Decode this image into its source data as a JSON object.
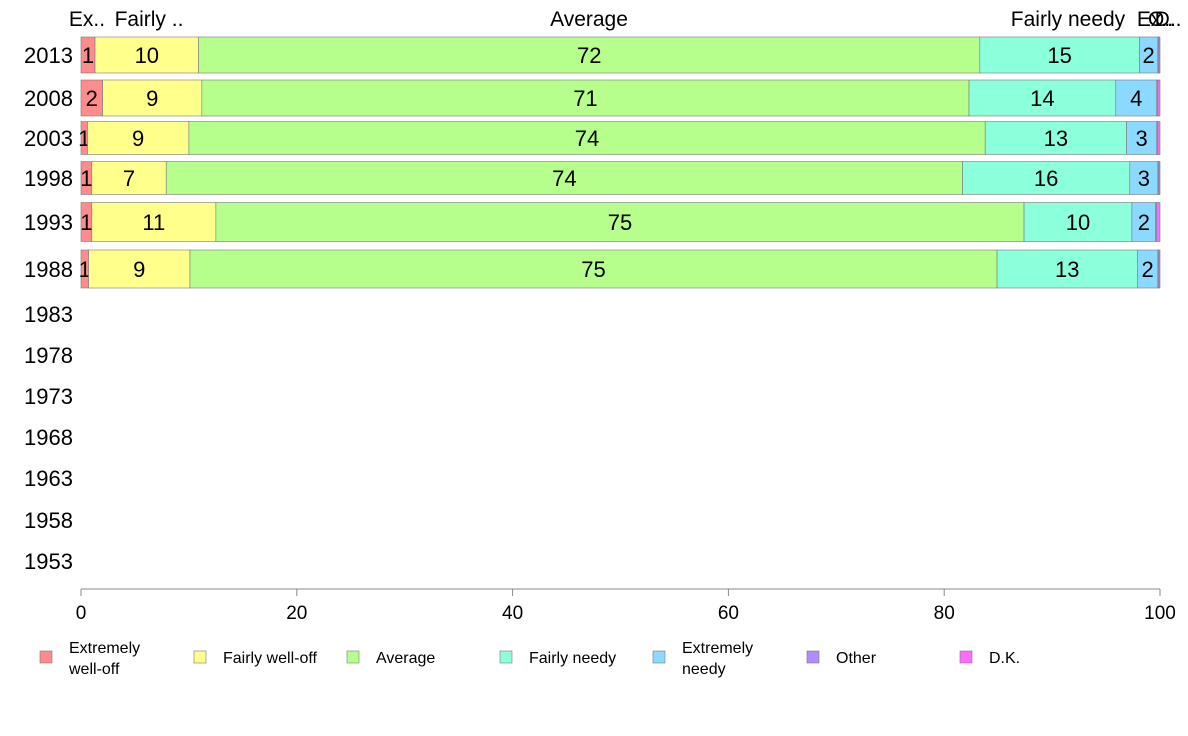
{
  "chart_data": {
    "type": "bar",
    "orientation": "horizontal",
    "stacked": true,
    "xlim": [
      0,
      100
    ],
    "x_ticks": [
      "0",
      "20",
      "40",
      "60",
      "80",
      "100"
    ],
    "categories": [
      "2013",
      "2008",
      "2003",
      "1998",
      "1993",
      "1988",
      "1983",
      "1978",
      "1973",
      "1968",
      "1963",
      "1958",
      "1953"
    ],
    "column_labels": [
      "Ex..",
      "Fairly ..",
      "Average",
      "Fairly needy",
      "Ex..",
      "O..",
      "D.."
    ],
    "series": [
      {
        "name": "Extremely well-off",
        "color": "#ff8c8c",
        "values": [
          1.3,
          2.0,
          0.6,
          1.0,
          1.0,
          0.7,
          null,
          null,
          null,
          null,
          null,
          null,
          null
        ],
        "labels": [
          "1",
          "2",
          "1",
          "1",
          "1",
          "1",
          "",
          "",
          "",
          "",
          "",
          "",
          ""
        ]
      },
      {
        "name": "Fairly well-off",
        "color": "#ffff8c",
        "values": [
          9.6,
          9.2,
          9.4,
          6.9,
          11.5,
          9.4,
          null,
          null,
          null,
          null,
          null,
          null,
          null
        ],
        "labels": [
          "10",
          "9",
          "9",
          "7",
          "11",
          "9",
          "",
          "",
          "",
          "",
          "",
          "",
          ""
        ]
      },
      {
        "name": "Average",
        "color": "#b6ff8c",
        "values": [
          72.4,
          71.1,
          73.8,
          73.8,
          74.9,
          74.8,
          null,
          null,
          null,
          null,
          null,
          null,
          null
        ],
        "labels": [
          "72",
          "71",
          "74",
          "74",
          "75",
          "75",
          "",
          "",
          "",
          "",
          "",
          "",
          ""
        ]
      },
      {
        "name": "Fairly needy",
        "color": "#8cffdb",
        "values": [
          14.8,
          13.6,
          13.1,
          15.5,
          10.0,
          13.0,
          null,
          null,
          null,
          null,
          null,
          null,
          null
        ],
        "labels": [
          "15",
          "14",
          "13",
          "16",
          "10",
          "13",
          "",
          "",
          "",
          "",
          "",
          "",
          ""
        ]
      },
      {
        "name": "Extremely needy",
        "color": "#8cd9ff",
        "values": [
          1.7,
          3.8,
          2.8,
          2.6,
          2.2,
          1.9,
          null,
          null,
          null,
          null,
          null,
          null,
          null
        ],
        "labels": [
          "2",
          "4",
          "3",
          "3",
          "2",
          "2",
          "",
          "",
          "",
          "",
          "",
          "",
          ""
        ]
      },
      {
        "name": "Other",
        "color": "#b08cff",
        "values": [
          0.1,
          0.1,
          0.1,
          0.1,
          0.1,
          0.1,
          null,
          null,
          null,
          null,
          null,
          null,
          null
        ],
        "labels": [
          "",
          "",
          "",
          "",
          "",
          "",
          "",
          "",
          "",
          "",
          "",
          "",
          ""
        ]
      },
      {
        "name": "D.K.",
        "color": "#ff6bff",
        "values": [
          0.1,
          0.2,
          0.2,
          0.1,
          0.3,
          0.1,
          null,
          null,
          null,
          null,
          null,
          null,
          null
        ],
        "labels": [
          "",
          "",
          "",
          "",
          "",
          "",
          "",
          "",
          "",
          "",
          "",
          "",
          ""
        ]
      }
    ],
    "legend": {
      "position": "bottom",
      "items": [
        {
          "lines": [
            "Extremely",
            "well-off"
          ],
          "color": "#ff8c8c"
        },
        {
          "lines": [
            "Fairly well-off"
          ],
          "color": "#ffff8c"
        },
        {
          "lines": [
            "Average"
          ],
          "color": "#b6ff8c"
        },
        {
          "lines": [
            "Fairly needy"
          ],
          "color": "#8cffdb"
        },
        {
          "lines": [
            "Extremely",
            "needy"
          ],
          "color": "#8cd9ff"
        },
        {
          "lines": [
            "Other"
          ],
          "color": "#b08cff"
        },
        {
          "lines": [
            "D.K."
          ],
          "color": "#ff6bff"
        }
      ]
    },
    "grid": false
  }
}
